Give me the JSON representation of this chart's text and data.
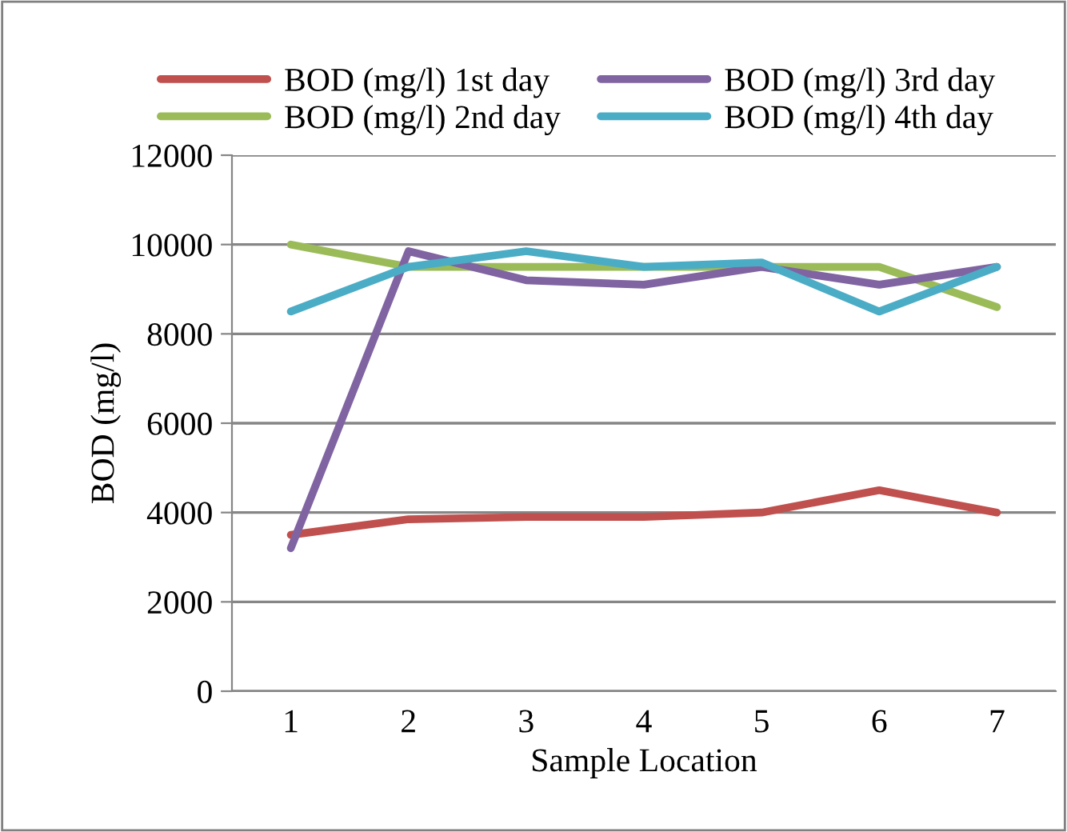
{
  "chart_data": {
    "type": "line",
    "xlabel": "Sample Location",
    "ylabel": "BOD (mg/l)",
    "categories": [
      "1",
      "2",
      "3",
      "4",
      "5",
      "6",
      "7"
    ],
    "series": [
      {
        "name": "BOD (mg/l) 1st day",
        "color": "#c0504d",
        "values": [
          3500,
          3850,
          3900,
          3900,
          4000,
          4500,
          4000
        ]
      },
      {
        "name": "BOD (mg/l) 2nd day",
        "color": "#9bbb59",
        "values": [
          10000,
          9500,
          9500,
          9500,
          9500,
          9500,
          8600
        ]
      },
      {
        "name": "BOD (mg/l) 3rd day",
        "color": "#8064a2",
        "values": [
          3200,
          9850,
          9200,
          9100,
          9500,
          9100,
          9500
        ]
      },
      {
        "name": "BOD (mg/l) 4th day",
        "color": "#4bacc6",
        "values": [
          8500,
          9500,
          9850,
          9500,
          9600,
          8500,
          9500
        ]
      }
    ],
    "ylim": [
      0,
      12000
    ],
    "yticks": [
      0,
      2000,
      4000,
      6000,
      8000,
      10000,
      12000
    ],
    "grid": "y",
    "legend": "top",
    "marker": "none",
    "line_style": "solid"
  }
}
